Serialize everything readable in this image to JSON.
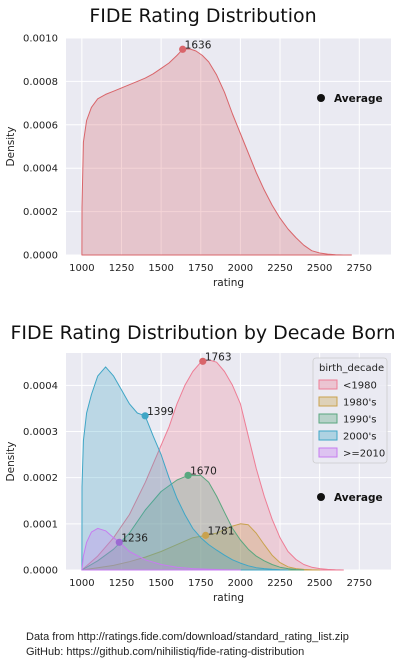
{
  "chart_data": [
    {
      "type": "area",
      "title": "FIDE Rating Distribution",
      "xlabel": "rating",
      "ylabel": "Density",
      "xlim": [
        900,
        2950
      ],
      "ylim": [
        0,
        0.001
      ],
      "xticks": [
        "1000",
        "1250",
        "1500",
        "1750",
        "2000",
        "2250",
        "2500",
        "2750"
      ],
      "xtick_values": [
        1000,
        1250,
        1500,
        1750,
        2000,
        2250,
        2500,
        2750
      ],
      "yticks": [
        "0.0000",
        "0.0002",
        "0.0004",
        "0.0006",
        "0.0008",
        "0.0010"
      ],
      "ytick_values": [
        0,
        0.0002,
        0.0004,
        0.0006,
        0.0008,
        0.001
      ],
      "grid": true,
      "legend_placement": "right",
      "legend_label": "Average",
      "series": [
        {
          "color": "#d9656a",
          "x": [
            1000,
            1001,
            1010,
            1030,
            1060,
            1100,
            1150,
            1200,
            1250,
            1300,
            1350,
            1400,
            1450,
            1500,
            1550,
            1600,
            1636,
            1680,
            1720,
            1760,
            1800,
            1850,
            1900,
            1950,
            2000,
            2050,
            2100,
            2150,
            2200,
            2250,
            2300,
            2350,
            2400,
            2450,
            2500,
            2550,
            2600,
            2650,
            2700
          ],
          "y": [
            0,
            0.00022,
            0.00052,
            0.00062,
            0.00068,
            0.00072,
            0.00074,
            0.000755,
            0.00077,
            0.000785,
            0.0008,
            0.000815,
            0.000835,
            0.00086,
            0.000885,
            0.00092,
            0.000948,
            0.00095,
            0.00094,
            0.00092,
            0.00089,
            0.00083,
            0.00075,
            0.00065,
            0.00056,
            0.00047,
            0.00038,
            0.0003,
            0.00023,
            0.00017,
            0.00012,
            8e-05,
            4.5e-05,
            2e-05,
            9e-06,
            4e-06,
            1e-06,
            2e-07,
            0
          ]
        }
      ],
      "averages": [
        {
          "label": "1636",
          "x": 1636,
          "y": 0.000948,
          "color": "#d9656a"
        }
      ]
    },
    {
      "type": "area",
      "title": "FIDE Rating Distribution by Decade Born",
      "xlabel": "rating",
      "ylabel": "Density",
      "xlim": [
        900,
        2950
      ],
      "ylim": [
        0,
        0.00047
      ],
      "xticks": [
        "1000",
        "1250",
        "1500",
        "1750",
        "2000",
        "2250",
        "2500",
        "2750"
      ],
      "xtick_values": [
        1000,
        1250,
        1500,
        1750,
        2000,
        2250,
        2500,
        2750
      ],
      "yticks": [
        "0.0000",
        "0.0001",
        "0.0002",
        "0.0003",
        "0.0004"
      ],
      "ytick_values": [
        0,
        0.0001,
        0.0002,
        0.0003,
        0.0004
      ],
      "grid": true,
      "legend_title": "birth_decade",
      "legend_placement": "top-right",
      "legend_label": "Average",
      "series": [
        {
          "name": "<1980",
          "color": "#ee7d95",
          "x": [
            1000,
            1100,
            1200,
            1300,
            1400,
            1500,
            1550,
            1600,
            1650,
            1700,
            1750,
            1763,
            1800,
            1850,
            1900,
            1950,
            2000,
            2050,
            2100,
            2150,
            2200,
            2250,
            2300,
            2350,
            2400,
            2450,
            2500,
            2550,
            2600,
            2650
          ],
          "y": [
            0,
            3e-05,
            7e-05,
            0.00012,
            0.00019,
            0.00027,
            0.00031,
            0.00036,
            0.0004,
            0.00043,
            0.00045,
            0.000452,
            0.000455,
            0.00045,
            0.00043,
            0.0004,
            0.00036,
            0.00029,
            0.00022,
            0.00016,
            0.00011,
            7e-05,
            4e-05,
            2.3e-05,
            1.2e-05,
            6e-06,
            3e-06,
            1.2e-06,
            4e-07,
            0
          ]
        },
        {
          "name": "1980's",
          "color": "#c9a24e",
          "x": [
            1000,
            1100,
            1200,
            1300,
            1400,
            1500,
            1600,
            1700,
            1781,
            1850,
            1900,
            1950,
            2000,
            2050,
            2100,
            2150,
            2200,
            2250,
            2300,
            2350,
            2400,
            2450,
            2500
          ],
          "y": [
            0,
            5e-06,
            1e-05,
            1.8e-05,
            2.8e-05,
            4e-05,
            5.5e-05,
            7e-05,
            7.5e-05,
            8e-05,
            8.8e-05,
            9.5e-05,
            0.0001,
            9.8e-05,
            8e-05,
            5.5e-05,
            3.2e-05,
            1.6e-05,
            7e-06,
            3e-06,
            1.2e-06,
            4e-07,
            0
          ]
        },
        {
          "name": "1990's",
          "color": "#59a77f",
          "x": [
            1000,
            1100,
            1200,
            1300,
            1400,
            1500,
            1600,
            1670,
            1750,
            1800,
            1850,
            1900,
            1950,
            2000,
            2050,
            2100,
            2150,
            2200,
            2250,
            2300,
            2350,
            2400
          ],
          "y": [
            0,
            2e-05,
            4.5e-05,
            8e-05,
            0.00013,
            0.00017,
            0.000195,
            0.000205,
            0.000205,
            0.00019,
            0.00016,
            0.000125,
            9e-05,
            6.5e-05,
            4.5e-05,
            3e-05,
            2e-05,
            1.2e-05,
            6e-06,
            3e-06,
            1e-06,
            0
          ]
        },
        {
          "name": "2000's",
          "color": "#3fa6c6",
          "x": [
            1000,
            1001,
            1010,
            1030,
            1060,
            1100,
            1150,
            1200,
            1250,
            1300,
            1350,
            1399,
            1450,
            1500,
            1550,
            1600,
            1650,
            1700,
            1750,
            1800,
            1850,
            1900,
            1950,
            2000,
            2050,
            2100,
            2150,
            2200,
            2250,
            2300
          ],
          "y": [
            0,
            0.00018,
            0.00028,
            0.00034,
            0.00038,
            0.00042,
            0.00044,
            0.00042,
            0.00039,
            0.00036,
            0.00034,
            0.000334,
            0.00029,
            0.00025,
            0.0002,
            0.000155,
            0.00012,
            9e-05,
            7e-05,
            5.5e-05,
            4.3e-05,
            3.2e-05,
            2.2e-05,
            1.5e-05,
            9e-06,
            5e-06,
            3e-06,
            1.5e-06,
            5e-07,
            0
          ]
        },
        {
          "name": ">=2010",
          "color": "#c77cf0",
          "x": [
            1000,
            1010,
            1030,
            1060,
            1100,
            1150,
            1200,
            1236,
            1300,
            1400,
            1500,
            1600,
            1700,
            1800,
            1900,
            2000
          ],
          "y": [
            0,
            3e-05,
            6e-05,
            8.2e-05,
            9e-05,
            8.5e-05,
            7e-05,
            6e-05,
            4e-05,
            2.2e-05,
            1.2e-05,
            6e-06,
            3e-06,
            1.5e-06,
            5e-07,
            0
          ]
        }
      ],
      "averages": [
        {
          "label": "1763",
          "x": 1763,
          "y": 0.000452,
          "color": "#d9656a"
        },
        {
          "label": "1399",
          "x": 1399,
          "y": 0.000334,
          "color": "#3fa6c6"
        },
        {
          "label": "1670",
          "x": 1670,
          "y": 0.000205,
          "color": "#59a77f"
        },
        {
          "label": "1781",
          "x": 1781,
          "y": 7.5e-05,
          "color": "#c9a24e"
        },
        {
          "label": "1236",
          "x": 1236,
          "y": 6e-05,
          "color": "#9b6ad3"
        }
      ]
    }
  ],
  "footer": {
    "line1": "Data from http://ratings.fide.com/download/standard_rating_list.zip",
    "line2": "GitHub: https://github.com/nihilistiq/fide-rating-distribution"
  }
}
